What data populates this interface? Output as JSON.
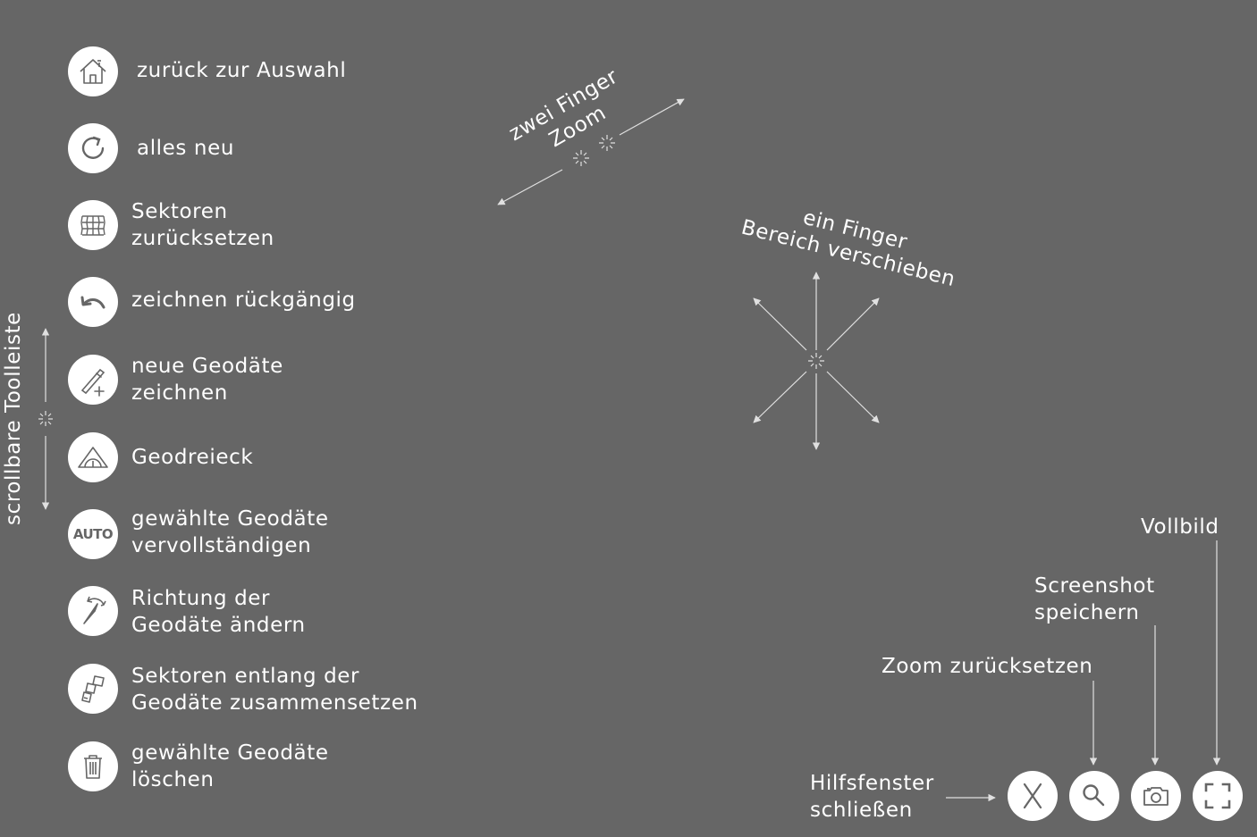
{
  "toolbar": {
    "vertical_label": "scrollbare Toolleiste",
    "items": [
      {
        "icon": "home-icon",
        "lines": [
          "zurück zur Auswahl"
        ]
      },
      {
        "icon": "refresh-icon",
        "lines": [
          "alles neu"
        ]
      },
      {
        "icon": "sectors-grid-icon",
        "lines": [
          "Sektoren",
          "zurücksetzen"
        ]
      },
      {
        "icon": "undo-icon",
        "lines": [
          "zeichnen rückgängig"
        ]
      },
      {
        "icon": "pen-plus-icon",
        "lines": [
          "neue Geodäte",
          "zeichnen"
        ]
      },
      {
        "icon": "set-square-icon",
        "lines": [
          "Geodreieck"
        ]
      },
      {
        "icon": "auto-icon",
        "icon_text": "AUTO",
        "lines": [
          "gewählte Geodäte",
          "vervollständigen"
        ]
      },
      {
        "icon": "compass-direction-icon",
        "lines": [
          "Richtung der",
          "Geodäte ändern"
        ]
      },
      {
        "icon": "assemble-sectors-icon",
        "lines": [
          "Sektoren entlang der",
          "Geodäte zusammensetzen"
        ]
      },
      {
        "icon": "trash-icon",
        "lines": [
          "gewählte Geodäte",
          "löschen"
        ]
      }
    ]
  },
  "gestures": {
    "two_finger": {
      "line1": "zwei Finger",
      "line2": "Zoom"
    },
    "one_finger": {
      "line1": "ein Finger",
      "line2": "Bereich verschieben"
    }
  },
  "corner": {
    "close_help": {
      "icon": "close-icon",
      "lines": [
        "Hilfsfenster",
        "schließen"
      ]
    },
    "zoom_reset": {
      "icon": "zoom-icon",
      "lines": [
        "Zoom zurücksetzen"
      ]
    },
    "screenshot": {
      "icon": "camera-icon",
      "lines": [
        "Screenshot",
        "speichern"
      ]
    },
    "fullscreen": {
      "icon": "fullscreen-icon",
      "lines": [
        "Vollbild"
      ]
    }
  },
  "colors": {
    "background": "#666666",
    "foreground": "#ffffff",
    "icon_stroke": "#666666"
  }
}
